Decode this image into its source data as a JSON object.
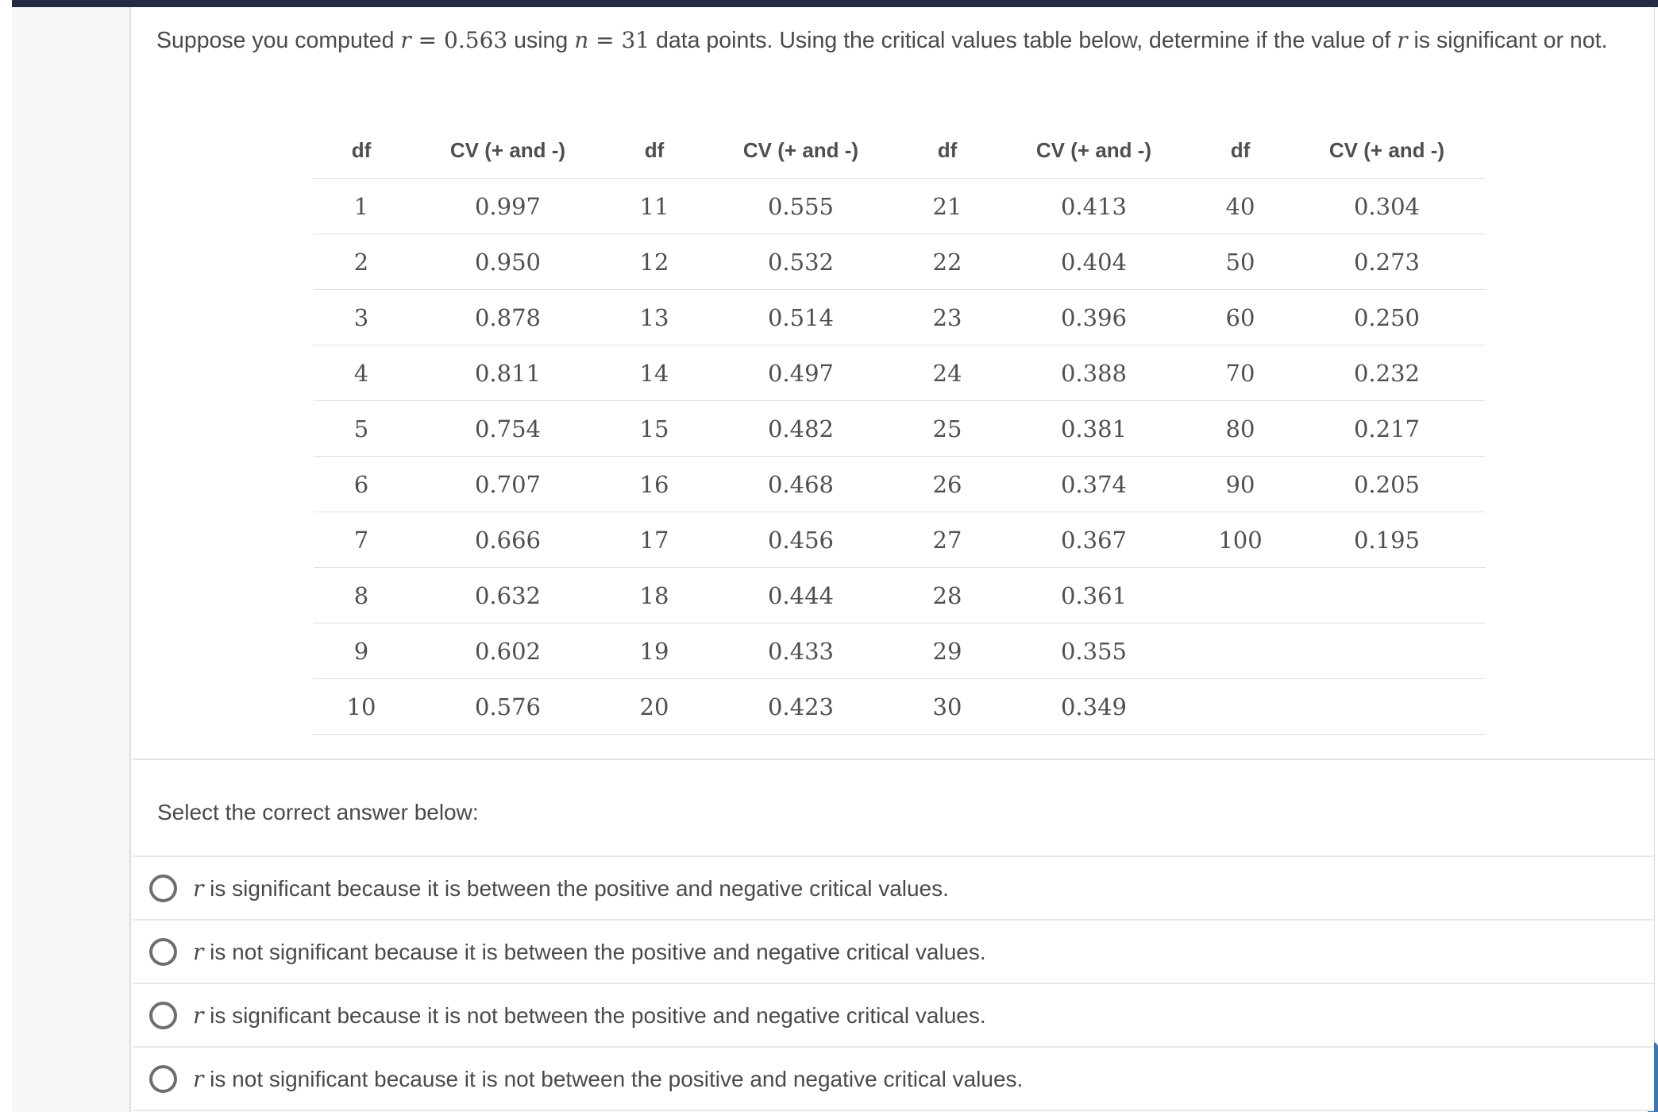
{
  "colors": {
    "topbar_navy": "#252b43",
    "scrollbar_blue": "#3d76ae",
    "divider_gray": "#e5e5e5",
    "sidebar_gray": "#f7f7f7"
  },
  "question": {
    "p1": "Suppose you computed ",
    "v1": "r",
    "m1": " = 0.563",
    "p2": " using ",
    "v2": "n",
    "m2": " = 31",
    "p3": " data points. Using the critical values table below, determine if the value of ",
    "v3": "r",
    "p4": " is significant or not."
  },
  "table": {
    "headers": [
      "df",
      "CV (+ and -)",
      "df",
      "CV (+ and -)",
      "df",
      "CV (+ and -)",
      "df",
      "CV (+ and -)"
    ],
    "rows": [
      [
        "1",
        "0.997",
        "11",
        "0.555",
        "21",
        "0.413",
        "40",
        "0.304"
      ],
      [
        "2",
        "0.950",
        "12",
        "0.532",
        "22",
        "0.404",
        "50",
        "0.273"
      ],
      [
        "3",
        "0.878",
        "13",
        "0.514",
        "23",
        "0.396",
        "60",
        "0.250"
      ],
      [
        "4",
        "0.811",
        "14",
        "0.497",
        "24",
        "0.388",
        "70",
        "0.232"
      ],
      [
        "5",
        "0.754",
        "15",
        "0.482",
        "25",
        "0.381",
        "80",
        "0.217"
      ],
      [
        "6",
        "0.707",
        "16",
        "0.468",
        "26",
        "0.374",
        "90",
        "0.205"
      ],
      [
        "7",
        "0.666",
        "17",
        "0.456",
        "27",
        "0.367",
        "100",
        "0.195"
      ],
      [
        "8",
        "0.632",
        "18",
        "0.444",
        "28",
        "0.361",
        "",
        ""
      ],
      [
        "9",
        "0.602",
        "19",
        "0.433",
        "29",
        "0.355",
        "",
        ""
      ],
      [
        "10",
        "0.576",
        "20",
        "0.423",
        "30",
        "0.349",
        "",
        ""
      ]
    ]
  },
  "select_prompt": "Select the correct answer below:",
  "options": [
    {
      "var": "r",
      "text": " is significant because it is between the positive and negative critical values."
    },
    {
      "var": "r",
      "text": " is not significant because it is between the positive and negative critical values."
    },
    {
      "var": "r",
      "text": " is significant because it is not between the positive and negative critical values."
    },
    {
      "var": "r",
      "text": " is not significant because it is not between the positive and negative critical values."
    }
  ]
}
